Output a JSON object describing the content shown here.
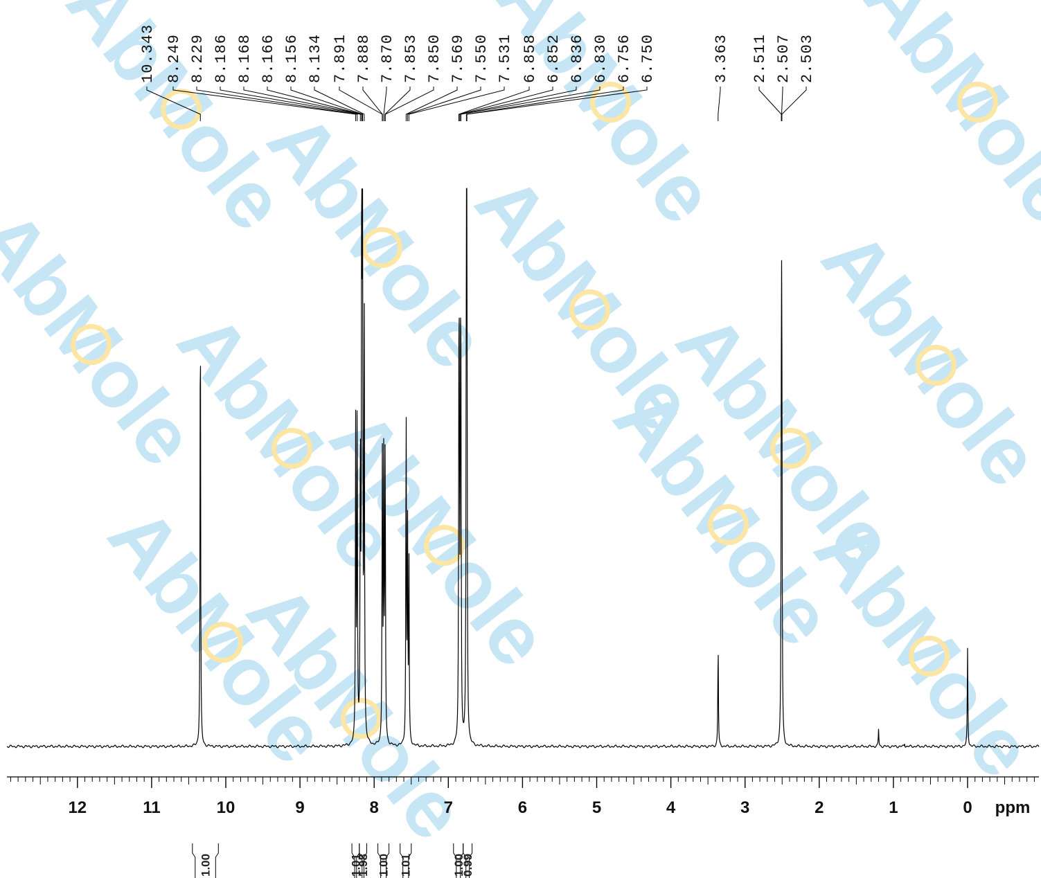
{
  "watermark": {
    "text": "AbMole",
    "color": "#c6e6f5",
    "accent": "#fbe6a6"
  },
  "chart_data": {
    "type": "line",
    "xlabel": "ppm",
    "x_reversed": true,
    "xlim": [
      13.0,
      -1.0
    ],
    "ylim": [
      0,
      1.0
    ],
    "major_ticks": [
      12,
      11,
      10,
      9,
      8,
      7,
      6,
      5,
      4,
      3,
      2,
      1,
      0
    ],
    "tick_labels": [
      "12",
      "11",
      "10",
      "9",
      "8",
      "7",
      "6",
      "5",
      "4",
      "3",
      "2",
      "1",
      "0"
    ],
    "unit_label": "ppm",
    "peaks": [
      {
        "x": 10.343,
        "y": 0.86
      },
      {
        "x": 8.249,
        "y": 0.58
      },
      {
        "x": 8.229,
        "y": 0.64
      },
      {
        "x": 8.186,
        "y": 0.54
      },
      {
        "x": 8.168,
        "y": 0.58
      },
      {
        "x": 8.166,
        "y": 0.6
      },
      {
        "x": 8.156,
        "y": 0.83
      },
      {
        "x": 8.134,
        "y": 0.83
      },
      {
        "x": 7.891,
        "y": 0.29
      },
      {
        "x": 7.888,
        "y": 0.29
      },
      {
        "x": 7.87,
        "y": 0.53
      },
      {
        "x": 7.853,
        "y": 0.29
      },
      {
        "x": 7.85,
        "y": 0.29
      },
      {
        "x": 7.569,
        "y": 0.62
      },
      {
        "x": 7.55,
        "y": 0.4
      },
      {
        "x": 7.531,
        "y": 0.33
      },
      {
        "x": 6.858,
        "y": 0.52
      },
      {
        "x": 6.852,
        "y": 0.52
      },
      {
        "x": 6.836,
        "y": 0.52
      },
      {
        "x": 6.83,
        "y": 0.52
      },
      {
        "x": 6.756,
        "y": 1.0
      },
      {
        "x": 6.75,
        "y": 0.89
      },
      {
        "x": 3.363,
        "y": 0.19
      },
      {
        "x": 2.511,
        "y": 0.42
      },
      {
        "x": 2.507,
        "y": 0.42
      },
      {
        "x": 2.503,
        "y": 0.42
      },
      {
        "x": 1.2,
        "y": 0.032
      },
      {
        "x": 0.85,
        "y": 0.006
      },
      {
        "x": 0.0,
        "y": 0.18
      }
    ],
    "peak_labels": [
      "10.343",
      "8.249",
      "8.229",
      "8.186",
      "8.168",
      "8.166",
      "8.156",
      "8.134",
      "7.891",
      "7.888",
      "7.870",
      "7.853",
      "7.850",
      "7.569",
      "7.550",
      "7.531",
      "6.858",
      "6.852",
      "6.836",
      "6.830",
      "6.756",
      "6.750",
      "3.363",
      "2.511",
      "2.507",
      "2.503"
    ],
    "integrals": [
      {
        "from": 10.45,
        "to": 10.1,
        "value": "1.00"
      },
      {
        "from": 8.3,
        "to": 8.2,
        "value": "1.01"
      },
      {
        "from": 8.2,
        "to": 8.1,
        "value": "1.98"
      },
      {
        "from": 7.95,
        "to": 7.8,
        "value": "1.00"
      },
      {
        "from": 7.65,
        "to": 7.5,
        "value": "1.01"
      },
      {
        "from": 6.93,
        "to": 6.8,
        "value": "1.00"
      },
      {
        "from": 6.8,
        "to": 6.68,
        "value": "0.99"
      }
    ]
  }
}
